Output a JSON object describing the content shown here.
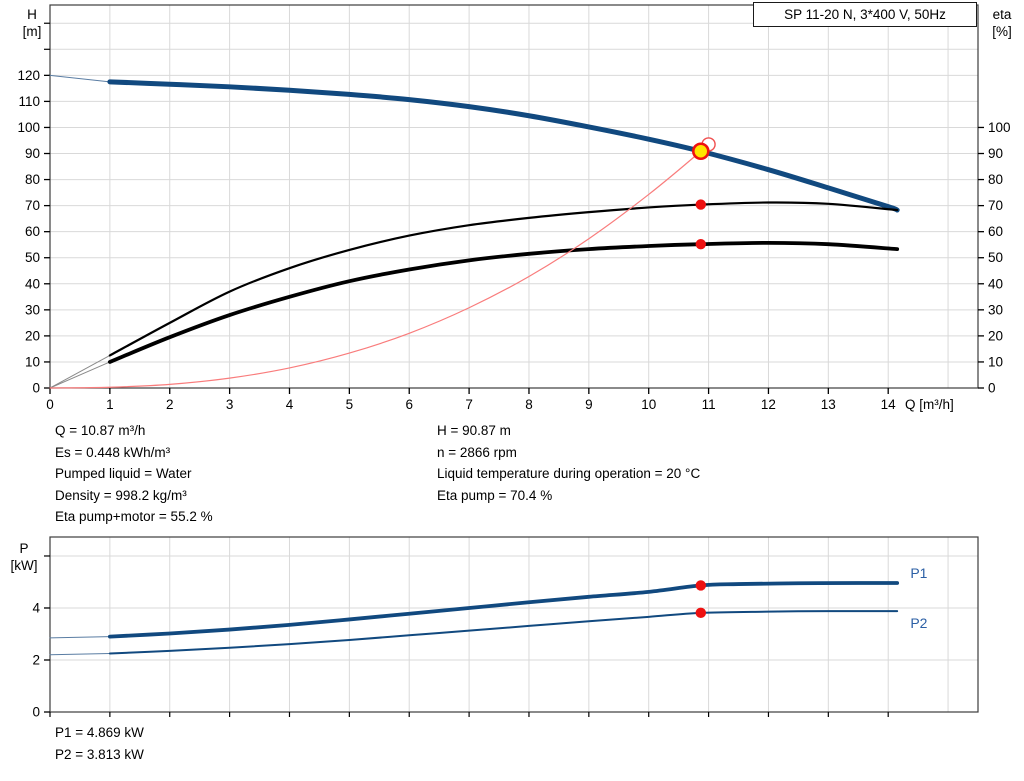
{
  "colors": {
    "curve_blue": "#11497f",
    "curve_blue_lead": "#5a7da3",
    "label_blue": "#2b5fa5",
    "curve_black": "#000000",
    "curve_black_lead": "#8a8a8a",
    "curve_red": "#f97c7c",
    "marker_red": "#ee1111",
    "marker_yellow": "#ffe400",
    "grid": "#d9d9d9",
    "frame": "#3c3c3c",
    "tick": "#000000"
  },
  "axis_labels": {
    "h_top": "H",
    "h_unit": "[m]",
    "eta_top": "eta",
    "eta_unit": "[%]",
    "p_top": "P",
    "p_unit": "[kW]"
  },
  "info": {
    "left": [
      "Q = 10.87 m³/h",
      "Es = 0.448 kWh/m³",
      "Pumped liquid = Water",
      "Density = 998.2 kg/m³",
      "Eta pump+motor = 55.2 %"
    ],
    "right": [
      "H = 90.87 m",
      "n = 2866 rpm",
      "Liquid temperature during operation = 20 °C",
      "Eta pump = 70.4 %"
    ],
    "power": [
      "P1 = 4.869 kW",
      "P2 = 3.813 kW"
    ]
  },
  "chart_data": [
    {
      "type": "line",
      "title": "SP 11-20 N, 3*400 V, 50Hz",
      "xlabel": "Q [m³/h]",
      "ylabel_left": "H [m]",
      "ylabel_right": "eta [%]",
      "xlim": [
        0,
        15.5
      ],
      "ylim": [
        0,
        147
      ],
      "right_axis_note": "eta 0-100 % shares the same pixel scale as H 0-100 m",
      "grid": true,
      "x_ticks": [
        0,
        1,
        2,
        3,
        4,
        5,
        6,
        7,
        8,
        9,
        10,
        11,
        12,
        13,
        14
      ],
      "x_grid": [
        1,
        2,
        3,
        4,
        5,
        6,
        7,
        8,
        9,
        10,
        11,
        12,
        13,
        14,
        15
      ],
      "y_ticks_left": [
        0,
        10,
        20,
        30,
        40,
        50,
        60,
        70,
        80,
        90,
        100,
        110,
        120
      ],
      "y_ticks_left_unlabeled": [
        130,
        140
      ],
      "y_grid": [
        10,
        20,
        30,
        40,
        50,
        60,
        70,
        80,
        90,
        100,
        110,
        120,
        130,
        140
      ],
      "y_ticks_right": [
        0,
        10,
        20,
        30,
        40,
        50,
        60,
        70,
        80,
        90,
        100
      ],
      "series": [
        {
          "name": "pump-curve-lead",
          "points": [
            [
              0,
              120
            ],
            [
              1,
              117.5
            ]
          ]
        },
        {
          "name": "pump-curve",
          "points": [
            [
              1,
              117.5
            ],
            [
              2,
              116.6
            ],
            [
              3,
              115.6
            ],
            [
              4,
              114.3
            ],
            [
              5,
              112.7
            ],
            [
              6,
              110.7
            ],
            [
              7,
              108.0
            ],
            [
              8,
              104.5
            ],
            [
              9,
              100.2
            ],
            [
              10,
              95.5
            ],
            [
              10.87,
              90.87
            ],
            [
              12,
              83.8
            ],
            [
              13,
              76.8
            ],
            [
              14,
              69.6
            ],
            [
              14.15,
              68.3
            ]
          ]
        },
        {
          "name": "eta-pump-lead",
          "points": [
            [
              0,
              0
            ],
            [
              1,
              12.5
            ]
          ]
        },
        {
          "name": "eta-pump",
          "points": [
            [
              1,
              12.5
            ],
            [
              2,
              25
            ],
            [
              3,
              37
            ],
            [
              4,
              46
            ],
            [
              5,
              53
            ],
            [
              6,
              58.5
            ],
            [
              7,
              62.5
            ],
            [
              8,
              65.3
            ],
            [
              9,
              67.5
            ],
            [
              10,
              69.3
            ],
            [
              10.87,
              70.4
            ],
            [
              12,
              71.2
            ],
            [
              13,
              70.7
            ],
            [
              14.15,
              68.3
            ]
          ]
        },
        {
          "name": "eta-pump-motor-lead",
          "points": [
            [
              0,
              0
            ],
            [
              1,
              10
            ]
          ]
        },
        {
          "name": "eta-pump-motor",
          "points": [
            [
              1,
              10
            ],
            [
              2,
              19.5
            ],
            [
              3,
              28
            ],
            [
              4,
              35
            ],
            [
              5,
              41
            ],
            [
              6,
              45.5
            ],
            [
              7,
              49
            ],
            [
              8,
              51.5
            ],
            [
              9,
              53.3
            ],
            [
              10,
              54.5
            ],
            [
              10.87,
              55.2
            ],
            [
              12,
              55.7
            ],
            [
              13,
              55.2
            ],
            [
              14.15,
              53.3
            ]
          ]
        },
        {
          "name": "system-curve",
          "points": [
            [
              0,
              0
            ],
            [
              1,
              0.3
            ],
            [
              2,
              1.4
            ],
            [
              3,
              3.8
            ],
            [
              4,
              7.7
            ],
            [
              5,
              13.4
            ],
            [
              6,
              21
            ],
            [
              7,
              30.8
            ],
            [
              8,
              42.8
            ],
            [
              9,
              57.3
            ],
            [
              10,
              74.3
            ],
            [
              10.87,
              90.87
            ],
            [
              11,
              94
            ]
          ]
        }
      ],
      "markers": [
        {
          "name": "duty-point-requested",
          "kind": "open",
          "x": 11,
          "y": 93.5
        },
        {
          "name": "operating-point",
          "kind": "selected",
          "x": 10.87,
          "y": 90.87
        },
        {
          "name": "eta-pump-point",
          "kind": "dot",
          "x": 10.87,
          "y": 70.4
        },
        {
          "name": "eta-pump-motor-point",
          "kind": "dot",
          "x": 10.87,
          "y": 55.2
        }
      ]
    },
    {
      "type": "line",
      "title": "",
      "xlabel": "",
      "ylabel_left": "P [kW]",
      "xlim": [
        0,
        15.5
      ],
      "ylim": [
        0,
        6.73
      ],
      "grid": true,
      "x_ticks": [],
      "x_ticks_unlabeled": [
        0,
        1,
        2,
        3,
        4,
        5,
        6,
        7,
        8,
        9,
        10,
        11,
        12,
        13,
        14
      ],
      "x_grid": [
        1,
        2,
        3,
        4,
        5,
        6,
        7,
        8,
        9,
        10,
        11,
        12,
        13,
        14,
        15
      ],
      "y_ticks_left": [
        0,
        2,
        4
      ],
      "y_ticks_left_unlabeled": [
        6
      ],
      "y_grid": [
        2,
        4,
        6
      ],
      "series": [
        {
          "name": "p1-curve-lead",
          "points": [
            [
              0,
              2.85
            ],
            [
              1,
              2.9
            ]
          ]
        },
        {
          "name": "p1-curve",
          "points": [
            [
              1,
              2.9
            ],
            [
              2,
              3.02
            ],
            [
              3,
              3.17
            ],
            [
              4,
              3.35
            ],
            [
              5,
              3.56
            ],
            [
              6,
              3.78
            ],
            [
              7,
              4.0
            ],
            [
              8,
              4.22
            ],
            [
              9,
              4.43
            ],
            [
              10,
              4.62
            ],
            [
              10.87,
              4.869
            ],
            [
              11.5,
              4.92
            ],
            [
              12.5,
              4.95
            ],
            [
              13.5,
              4.96
            ],
            [
              14.15,
              4.96
            ]
          ]
        },
        {
          "name": "p2-curve-lead",
          "points": [
            [
              0,
              2.2
            ],
            [
              1,
              2.25
            ]
          ]
        },
        {
          "name": "p2-curve",
          "points": [
            [
              1,
              2.25
            ],
            [
              2,
              2.35
            ],
            [
              3,
              2.47
            ],
            [
              4,
              2.61
            ],
            [
              5,
              2.77
            ],
            [
              6,
              2.95
            ],
            [
              7,
              3.13
            ],
            [
              8,
              3.31
            ],
            [
              9,
              3.49
            ],
            [
              10,
              3.66
            ],
            [
              10.87,
              3.813
            ],
            [
              12,
              3.86
            ],
            [
              13,
              3.88
            ],
            [
              14.15,
              3.88
            ]
          ]
        }
      ],
      "markers": [
        {
          "name": "p1-point",
          "kind": "dot",
          "x": 10.87,
          "y": 4.869
        },
        {
          "name": "p2-point",
          "kind": "dot",
          "x": 10.87,
          "y": 3.813
        }
      ],
      "labels": [
        {
          "name": "p1-series-label",
          "text": "P1",
          "x": 14.37,
          "y": 5.35
        },
        {
          "name": "p2-series-label",
          "text": "P2",
          "x": 14.37,
          "y": 3.42
        }
      ]
    }
  ]
}
